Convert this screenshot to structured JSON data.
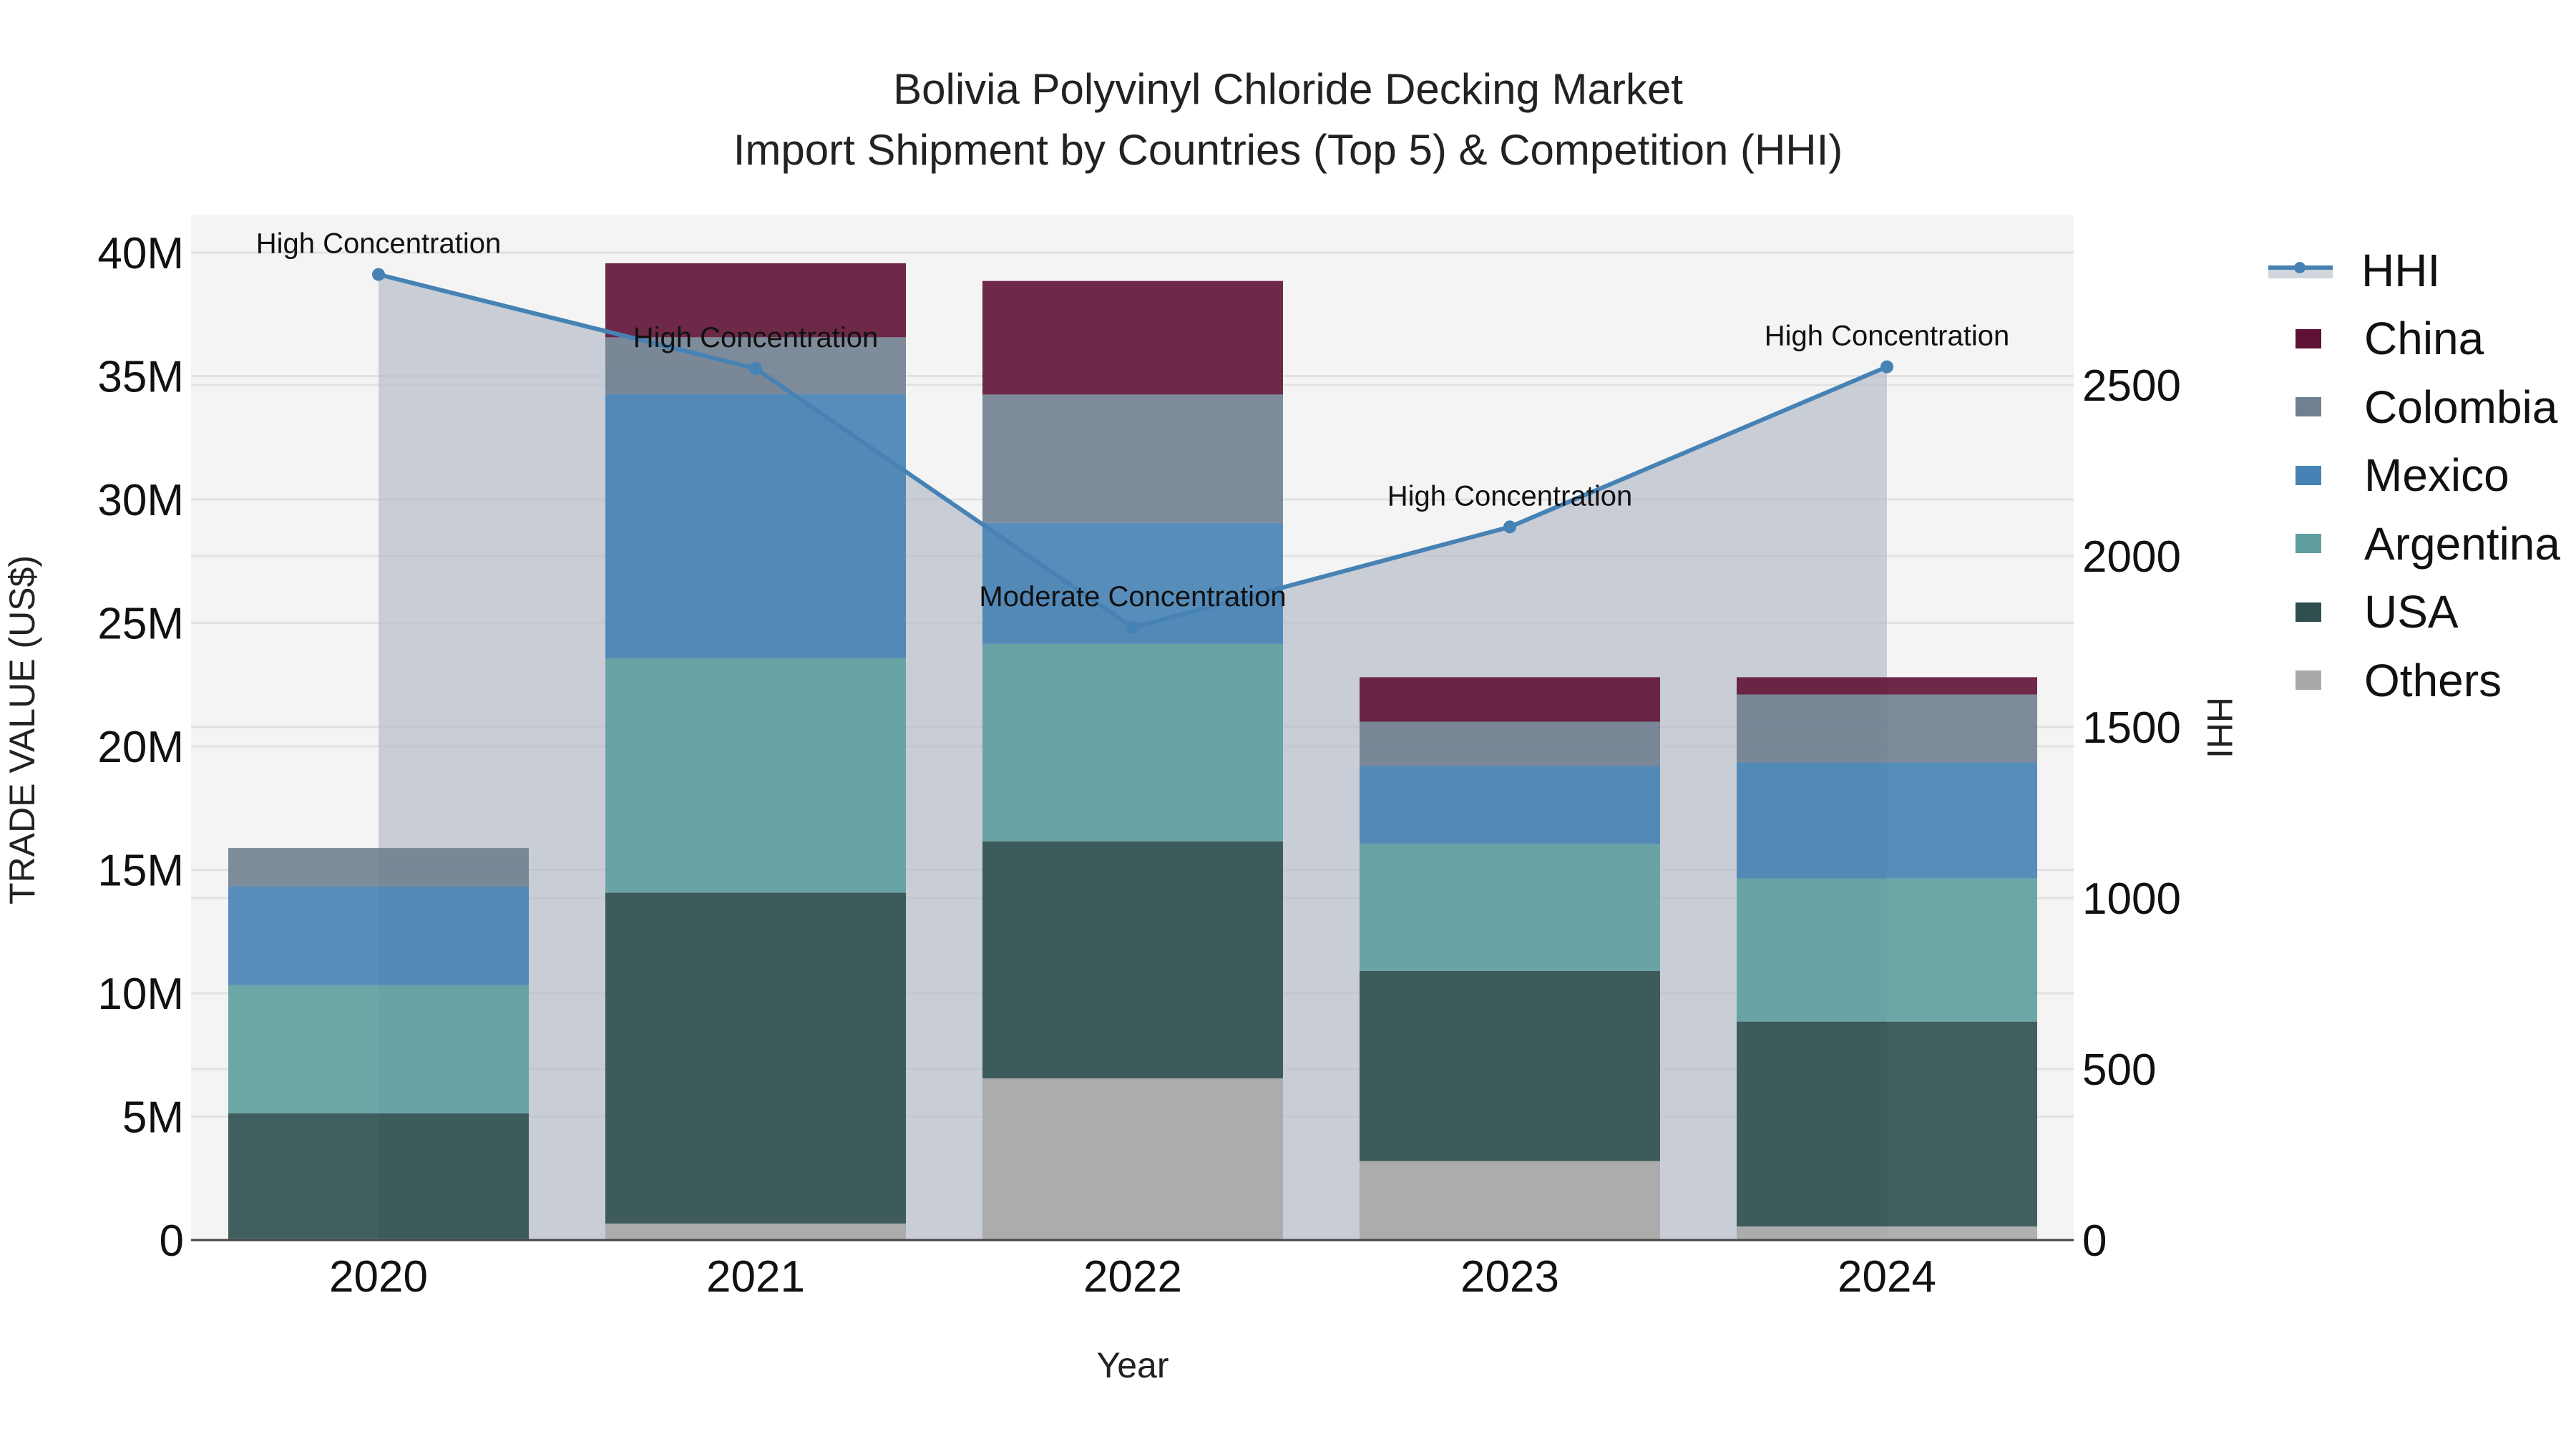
{
  "title": {
    "line1": "Bolivia Polyvinyl Chloride Decking Market",
    "line2": "Import Shipment by Countries (Top 5) & Competition (HHI)"
  },
  "chart_data": {
    "type": "bar",
    "stacked": true,
    "title": "Bolivia Polyvinyl Chloride Decking Market — Import Shipment by Countries (Top 5) & Competition (HHI)",
    "xlabel": "Year",
    "ylabel": "TRADE VALUE (US$)",
    "y2label": "HHI",
    "categories": [
      "2020",
      "2021",
      "2022",
      "2023",
      "2024"
    ],
    "ylim": [
      0,
      41700000
    ],
    "y2lim": [
      0,
      2900
    ],
    "yticks": [
      "0",
      "5M",
      "10M",
      "15M",
      "20M",
      "25M",
      "30M",
      "35M",
      "40M"
    ],
    "y2ticks": [
      "0",
      "500",
      "1000",
      "1500",
      "2000",
      "2500"
    ],
    "grid": true,
    "legend_position": "right",
    "series": [
      {
        "name": "Others",
        "color": "#a9a9a9",
        "values": [
          0.05,
          0.67,
          6.55,
          3.2,
          0.55
        ],
        "unit": "M US$"
      },
      {
        "name": "USA",
        "color": "#2f4f4f",
        "values": [
          5.08,
          13.4,
          9.6,
          7.7,
          8.3
        ],
        "unit": "M US$"
      },
      {
        "name": "Argentina",
        "color": "#5f9ea0",
        "values": [
          5.2,
          9.5,
          8.0,
          5.15,
          5.8
        ],
        "unit": "M US$"
      },
      {
        "name": "Mexico",
        "color": "#4682b4",
        "values": [
          4.0,
          10.7,
          4.9,
          3.15,
          4.7
        ],
        "unit": "M US$"
      },
      {
        "name": "Colombia",
        "color": "#708090",
        "values": [
          1.55,
          2.3,
          5.2,
          1.8,
          2.75
        ],
        "unit": "M US$"
      },
      {
        "name": "China",
        "color": "#5e1334",
        "values": [
          0,
          3.0,
          4.6,
          1.8,
          0.7
        ],
        "unit": "M US$"
      }
    ],
    "hhi": {
      "name": "HHI",
      "color": "#4682b4",
      "fill": "rgba(176,184,196,0.6)",
      "values": [
        2823,
        2548,
        1791,
        2085,
        2553
      ],
      "annotations": [
        "High Concentration",
        "High Concentration",
        "Moderate Concentration",
        "High Concentration",
        "High Concentration"
      ]
    }
  },
  "legend": {
    "items": [
      {
        "label": "HHI",
        "type": "line"
      },
      {
        "label": "China",
        "color": "#5e1334"
      },
      {
        "label": "Colombia",
        "color": "#708090"
      },
      {
        "label": "Mexico",
        "color": "#4682b4"
      },
      {
        "label": "Argentina",
        "color": "#5f9ea0"
      },
      {
        "label": "USA",
        "color": "#2f4f4f"
      },
      {
        "label": "Others",
        "color": "#a9a9a9"
      }
    ]
  }
}
